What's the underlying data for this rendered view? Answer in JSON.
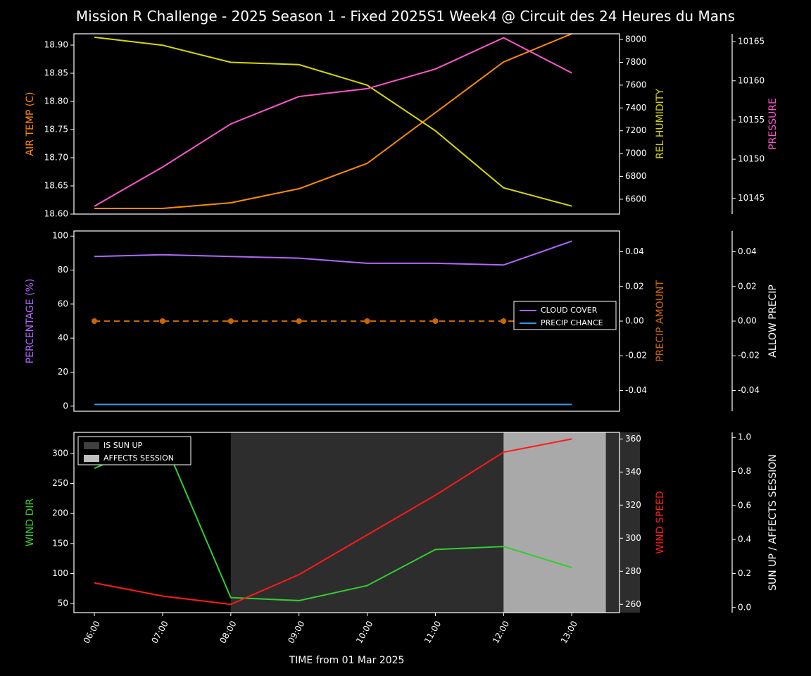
{
  "figure": {
    "title": "Mission R Challenge - 2025 Season 1 - Fixed 2025S1 Week4 @ Circuit des 24 Heures du Mans",
    "title_fontsize": 20,
    "title_color": "#ffffff",
    "background_color": "#000000",
    "x_label": "TIME from 01 Mar 2025",
    "x_label_color": "#ffffff",
    "x_ticks": [
      "06:00",
      "07:00",
      "08:00",
      "09:00",
      "10:00",
      "11:00",
      "12:00",
      "13:00"
    ],
    "tick_fontsize": 12,
    "label_fontsize": 14
  },
  "panel1": {
    "axes": {
      "left": {
        "label": "AIR TEMP (C)",
        "color": "#ff8c00",
        "ylim": [
          18.6,
          18.92
        ],
        "tick_step": 0.05,
        "ticks": [
          18.6,
          18.65,
          18.7,
          18.75,
          18.8,
          18.85,
          18.9
        ],
        "tick_fmt": "fixed2"
      },
      "right1": {
        "label": "REL HUMIDITY",
        "color": "#d8d800",
        "ylim": [
          6470,
          8050
        ],
        "ticks": [
          6600,
          6800,
          7000,
          7200,
          7400,
          7600,
          7800,
          8000
        ]
      },
      "right2": {
        "label": "PRESSURE",
        "color": "#ff55cc",
        "ylim": [
          10143,
          10166
        ],
        "ticks": [
          10145,
          10150,
          10155,
          10160,
          10165
        ]
      }
    },
    "series": {
      "air_temp": {
        "color": "#ff8c00",
        "values": [
          18.61,
          18.61,
          18.62,
          18.645,
          18.69,
          18.78,
          18.87,
          18.92
        ]
      },
      "rel_humidity": {
        "color": "#d8d800",
        "values": [
          8020,
          7950,
          7800,
          7780,
          7600,
          7200,
          6700,
          6540
        ]
      },
      "pressure": {
        "color": "#ff55cc",
        "values": [
          10144,
          10149,
          10154.5,
          10158,
          10159,
          10161.5,
          10165.5,
          10161
        ]
      }
    }
  },
  "panel2": {
    "axes": {
      "left": {
        "label": "PERCENTAGE (%)",
        "color": "#b266ff",
        "ylim": [
          -3,
          103
        ],
        "ticks": [
          0,
          20,
          40,
          60,
          80,
          100
        ]
      },
      "right1": {
        "label": "PRECIP AMOUNT",
        "color": "#cc6600",
        "ylim": [
          -0.052,
          0.052
        ],
        "ticks": [
          -0.04,
          -0.02,
          0.0,
          0.02,
          0.04
        ],
        "tick_fmt": "fixed2"
      },
      "right2": {
        "label": "ALLOW PRECIP",
        "color": "#ffffff",
        "ylim": [
          -0.052,
          0.052
        ],
        "ticks": [
          -0.04,
          -0.02,
          0.0,
          0.02,
          0.04
        ],
        "tick_fmt": "fixed2"
      }
    },
    "series": {
      "cloud_cover": {
        "color": "#b266ff",
        "values": [
          88,
          89,
          88,
          87,
          84,
          84,
          83,
          97
        ],
        "legend": "CLOUD COVER"
      },
      "precip_chance": {
        "color": "#3399e6",
        "values": [
          1,
          1,
          1,
          1,
          1,
          1,
          1,
          1
        ],
        "legend": "PRECIP CHANCE"
      },
      "precip_amount": {
        "color": "#cc6600",
        "values": [
          0,
          0,
          0,
          0,
          0,
          0,
          0,
          0
        ],
        "style": "dashed",
        "markers": true
      },
      "allow_precip": {
        "color": "#ffffff",
        "values": [
          0,
          0,
          0,
          0,
          0,
          0,
          0,
          0
        ],
        "style": "dashed",
        "markers": true
      }
    },
    "legend": [
      "CLOUD COVER",
      "PRECIP CHANCE"
    ]
  },
  "panel3": {
    "axes": {
      "left": {
        "label": "WIND DIR",
        "color": "#33cc33",
        "ylim": [
          35,
          335
        ],
        "ticks": [
          50,
          100,
          150,
          200,
          250,
          300
        ]
      },
      "right1": {
        "label": "WIND SPEED",
        "color": "#ff1a1a",
        "ylim": [
          255,
          364
        ],
        "ticks": [
          260,
          280,
          300,
          320,
          340,
          360
        ]
      },
      "right2": {
        "label": "SUN UP / AFFECTS SESSION",
        "color": "#ffffff",
        "ylim": [
          -0.03,
          1.03
        ],
        "ticks": [
          0.0,
          0.2,
          0.4,
          0.6,
          0.8,
          1.0
        ],
        "tick_fmt": "fixed1"
      }
    },
    "series": {
      "wind_dir": {
        "color": "#33cc33",
        "values": [
          275,
          326,
          60,
          55,
          80,
          140,
          145,
          110
        ]
      },
      "wind_speed": {
        "color": "#ff1a1a",
        "values": [
          273,
          265,
          260,
          278,
          302,
          326,
          352,
          360
        ]
      }
    },
    "regions": {
      "is_sun_up": {
        "color": "#404040",
        "opacity": 0.7,
        "from_idx": 2,
        "to_idx": 8,
        "legend": "IS SUN UP"
      },
      "affects_session": {
        "color": "#bfbfbf",
        "opacity": 0.85,
        "from_idx": 6,
        "to_idx": 7.5,
        "legend": "AFFECTS SESSION"
      }
    },
    "legend": [
      "IS SUN UP",
      "AFFECTS SESSION"
    ]
  }
}
